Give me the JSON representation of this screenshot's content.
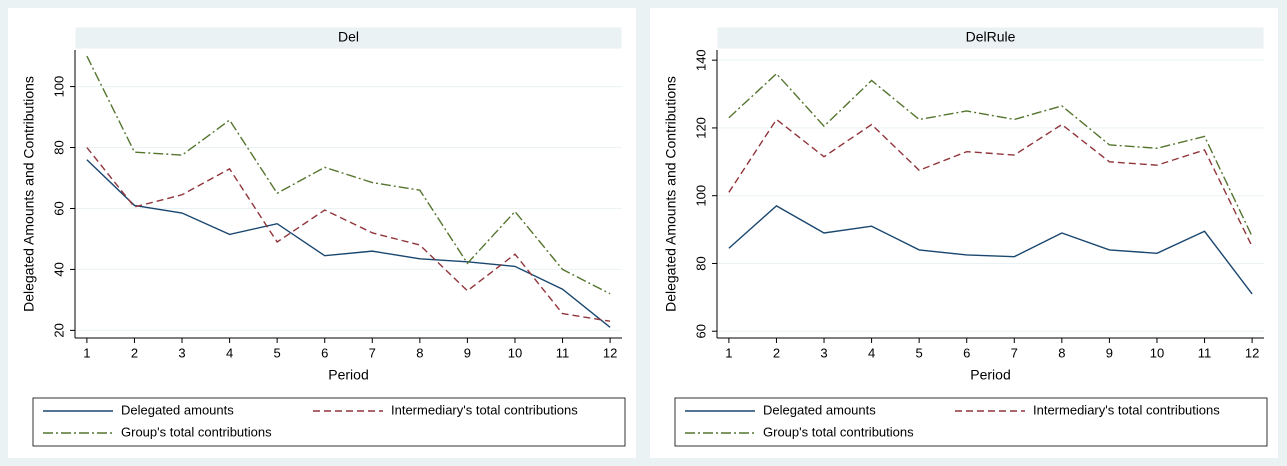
{
  "chart_data": [
    {
      "type": "line",
      "title": "Del",
      "x_label": "Period",
      "y_label": "Delegated Amounts and Contributions",
      "x": [
        1,
        2,
        3,
        4,
        5,
        6,
        7,
        8,
        9,
        10,
        11,
        12
      ],
      "xlim": [
        0.75,
        12.25
      ],
      "xticks": [
        1,
        2,
        3,
        4,
        5,
        6,
        7,
        8,
        9,
        10,
        11,
        12
      ],
      "ylim": [
        17.5,
        112
      ],
      "yticks": [
        20,
        40,
        60,
        80,
        100
      ],
      "grid": true,
      "legend": "bottom",
      "series": [
        {
          "name": "Delegated amounts",
          "color": "#1a476f",
          "style": "solid",
          "values": [
            76,
            61,
            58.5,
            51.5,
            55,
            44.5,
            46,
            43.5,
            42.5,
            41,
            33.5,
            21
          ]
        },
        {
          "name": "Intermediary's total contributions",
          "color": "#90353b",
          "style": "dash",
          "values": [
            80,
            60.5,
            64.5,
            73,
            49,
            59.5,
            52,
            48,
            33,
            45,
            25.5,
            23
          ]
        },
        {
          "name": "Group's total contributions",
          "color": "#55752f",
          "style": "dashdot",
          "values": [
            110,
            78.5,
            77.5,
            89,
            65,
            73.5,
            68.5,
            66,
            42,
            59,
            40,
            32
          ]
        }
      ]
    },
    {
      "type": "line",
      "title": "DelRule",
      "x_label": "Period",
      "y_label": "Delegated Amounts and Contributions",
      "x": [
        1,
        2,
        3,
        4,
        5,
        6,
        7,
        8,
        9,
        10,
        11,
        12
      ],
      "xlim": [
        0.75,
        12.25
      ],
      "xticks": [
        1,
        2,
        3,
        4,
        5,
        6,
        7,
        8,
        9,
        10,
        11,
        12
      ],
      "ylim": [
        58,
        143
      ],
      "yticks": [
        60,
        80,
        100,
        120,
        140
      ],
      "grid": true,
      "legend": "bottom",
      "series": [
        {
          "name": "Delegated amounts",
          "color": "#1a476f",
          "style": "solid",
          "values": [
            84.5,
            97,
            89,
            91,
            84,
            82.5,
            82,
            89,
            84,
            83,
            89.5,
            71
          ]
        },
        {
          "name": "Intermediary's total contributions",
          "color": "#90353b",
          "style": "dash",
          "values": [
            101,
            122.5,
            111.5,
            121,
            107.5,
            113,
            112,
            121,
            110,
            109,
            113.5,
            85
          ]
        },
        {
          "name": "Group's total contributions",
          "color": "#55752f",
          "style": "dashdot",
          "values": [
            123,
            136,
            120.5,
            134,
            122.5,
            125,
            122.5,
            126.5,
            115,
            114,
            117.5,
            88
          ]
        }
      ]
    }
  ]
}
